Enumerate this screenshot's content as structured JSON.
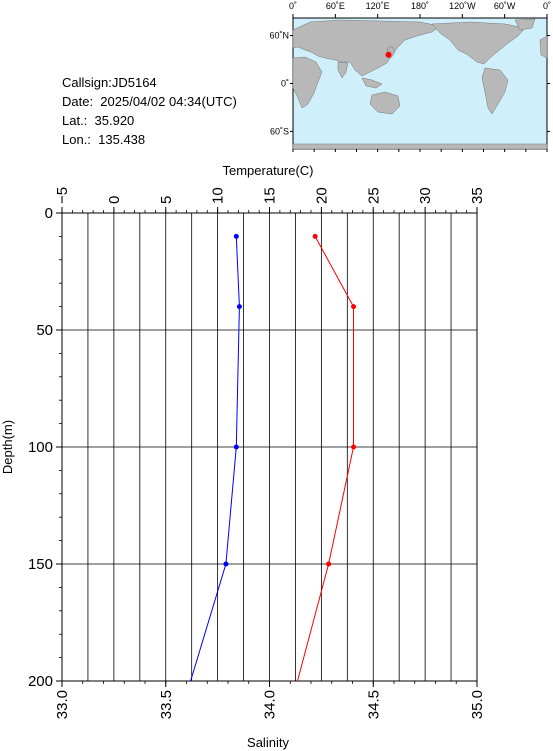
{
  "header": {
    "callsign_line": "Callsign:JD5164",
    "date_line": "Date:  2025/04/02 04:34(UTC)",
    "lat_line": "Lat.:  35.920",
    "lon_line": "Lon.:  135.438"
  },
  "map": {
    "top_labels": [
      "0˚",
      "60˚E",
      "120˚E",
      "180˚",
      "120˚W",
      "60˚W",
      "0˚"
    ],
    "left_labels": [
      "60˚N",
      "0˚",
      "60˚S"
    ],
    "marker_lon": 135.438,
    "marker_lat": 35.92,
    "ocean_color": "#cfeffa",
    "land_color": "#b8b8b8",
    "marker_color": "#ff0000"
  },
  "chart_data": {
    "type": "line",
    "ylabel": "Depth(m)",
    "ylim": [
      0,
      200
    ],
    "y_ticks": [
      "0",
      "50",
      "100",
      "150",
      "200"
    ],
    "top_axis": {
      "label": "Temperature(C)",
      "range": [
        -5,
        35
      ],
      "ticks": [
        "−5",
        "0",
        "5",
        "10",
        "15",
        "20",
        "25",
        "30",
        "35"
      ]
    },
    "bottom_axis": {
      "label": "Salinity",
      "range": [
        33.0,
        35.0
      ],
      "ticks": [
        "33.0",
        "33.5",
        "34.0",
        "34.5",
        "35.0"
      ]
    },
    "series": [
      {
        "axis": "top",
        "color": "#ff0000",
        "points": [
          [
            19.4,
            10
          ],
          [
            23.1,
            40
          ],
          [
            23.1,
            100
          ],
          [
            20.7,
            150
          ],
          [
            17.7,
            200
          ]
        ],
        "markers": [
          [
            19.4,
            10
          ],
          [
            23.1,
            40
          ],
          [
            23.1,
            100
          ],
          [
            20.7,
            150
          ]
        ]
      },
      {
        "axis": "bottom",
        "color": "#0000ff",
        "points": [
          [
            33.84,
            10
          ],
          [
            33.855,
            40
          ],
          [
            33.84,
            100
          ],
          [
            33.79,
            150
          ],
          [
            33.62,
            200
          ]
        ],
        "markers": [
          [
            33.84,
            10
          ],
          [
            33.855,
            40
          ],
          [
            33.84,
            100
          ],
          [
            33.79,
            150
          ]
        ]
      }
    ],
    "grid": true
  }
}
